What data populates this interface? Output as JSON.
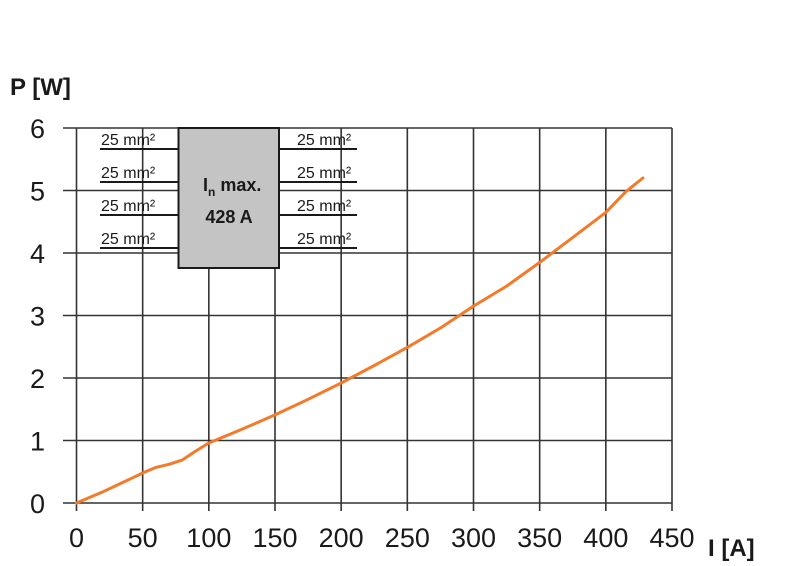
{
  "chart_data": {
    "type": "line",
    "title": "",
    "xlabel": "I [A]",
    "ylabel": "P [W]",
    "xlim": [
      0,
      450
    ],
    "ylim": [
      0,
      6
    ],
    "xticks": [
      "0",
      "50",
      "100",
      "150",
      "200",
      "250",
      "300",
      "350",
      "400",
      "450"
    ],
    "yticks": [
      "0",
      "1",
      "2",
      "3",
      "4",
      "5",
      "6"
    ],
    "grid": true,
    "series": [
      {
        "color": "#f47a2a",
        "x": [
          0,
          20,
          40,
          50,
          60,
          70,
          80,
          90,
          100,
          125,
          150,
          175,
          200,
          225,
          250,
          275,
          300,
          325,
          350,
          375,
          400,
          415,
          428
        ],
        "y": [
          0,
          0.18,
          0.38,
          0.48,
          0.57,
          0.62,
          0.69,
          0.83,
          0.96,
          1.18,
          1.41,
          1.66,
          1.92,
          2.2,
          2.49,
          2.8,
          3.15,
          3.47,
          3.85,
          4.25,
          4.65,
          4.98,
          5.2
        ]
      }
    ],
    "annotation": {
      "box_title_main": "I",
      "box_title_sub": "n",
      "box_title_rest": " max.",
      "box_value": "428 A",
      "box_color": "#c4c4c4",
      "left_wires": [
        "25 mm²",
        "25 mm²",
        "25 mm²",
        "25 mm²"
      ],
      "right_wires": [
        "25 mm²",
        "25 mm²",
        "25 mm²",
        "25 mm²"
      ]
    }
  }
}
